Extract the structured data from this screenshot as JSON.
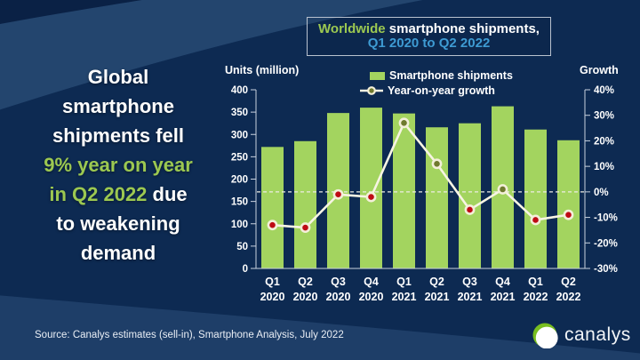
{
  "colors": {
    "background": "#0D2A52",
    "band_light": "#23456E",
    "band_dark": "#0A2145",
    "bar_green": "#A3D45F",
    "text_green": "#9CC851",
    "subtitle_blue": "#3E9BD3",
    "line_cream": "#F7F4E3",
    "marker_ring": "#F3EFD9",
    "marker_positive": "#6F7A2E",
    "marker_negative": "#BE0A14",
    "axis_line": "#C9D2DF",
    "logo_green": "#78BE20"
  },
  "headline": {
    "line1": "Global",
    "line2": "smartphone",
    "line3": "shipments fell",
    "line4": "9% year on year",
    "line5_green": "in Q2 2022",
    "line5_white": " due",
    "line6": "to weakening",
    "line7": "demand"
  },
  "title_box": {
    "line1_green": "Worldwide ",
    "line1_white": "smartphone shipments,",
    "line2": "Q1 2020 to Q2 2022"
  },
  "chart": {
    "left_axis_title": "Units (million)",
    "right_axis_title": "Growth",
    "legend": {
      "bars_label": "Smartphone shipments",
      "line_label": "Year-on-year growth"
    }
  },
  "chart_data": {
    "type": "bar+line",
    "title": "Worldwide smartphone shipments, Q1 2020 to Q2 2022",
    "categories": [
      "Q1 2020",
      "Q2 2020",
      "Q3 2020",
      "Q4 2020",
      "Q1 2021",
      "Q2 2021",
      "Q3 2021",
      "Q4 2021",
      "Q1 2022",
      "Q2 2022"
    ],
    "series": [
      {
        "name": "Smartphone shipments",
        "type": "bar",
        "axis": "left",
        "unit": "million units",
        "values": [
          272,
          285,
          348,
          360,
          347,
          316,
          325,
          363,
          311,
          287
        ]
      },
      {
        "name": "Year-on-year growth",
        "type": "line",
        "axis": "right",
        "unit": "%",
        "values": [
          -13,
          -14,
          -1,
          -2,
          27,
          11,
          -7,
          1,
          -11,
          -9
        ]
      }
    ],
    "left_axis": {
      "title": "Units (million)",
      "min": 0,
      "max": 400,
      "step": 50
    },
    "right_axis": {
      "title": "Growth",
      "min": -30,
      "max": 40,
      "step": 10,
      "suffix": "%"
    },
    "zero_line_dashed": true,
    "legend_position": "top",
    "grid": false
  },
  "footer": {
    "source": "Source: Canalys estimates (sell-in), Smartphone Analysis, July 2022",
    "logo_text": "canalys"
  }
}
